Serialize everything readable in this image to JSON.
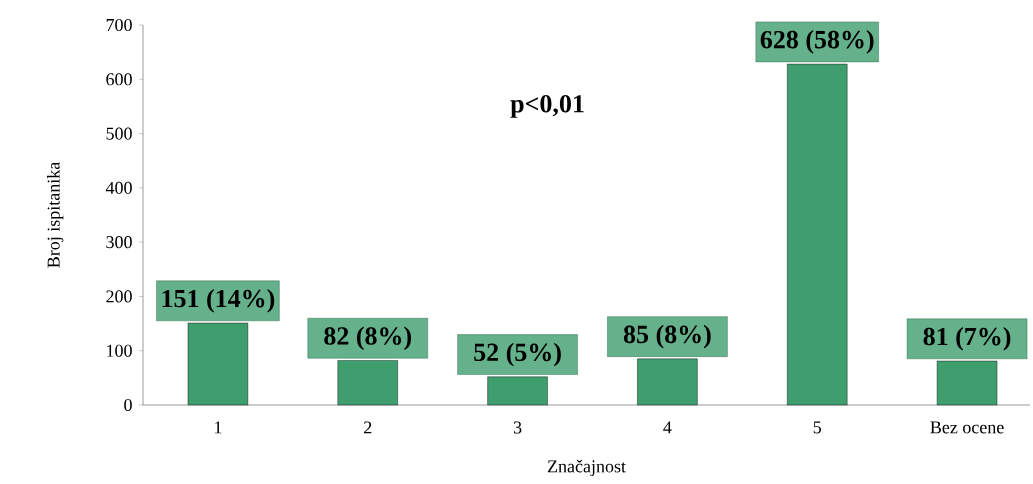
{
  "chart_data": {
    "type": "bar",
    "xlabel": "Značajnost",
    "ylabel": "Broj ispitanika",
    "categories": [
      "1",
      "2",
      "3",
      "4",
      "5",
      "Bez ocene"
    ],
    "values": [
      151,
      82,
      52,
      85,
      628,
      81
    ],
    "value_labels": [
      "151 (14%)",
      "82 (8%)",
      "52 (5%)",
      "85 (8%)",
      "628 (58%)",
      "81 (7%)"
    ],
    "color": "#3f9e6e",
    "ylim": [
      0,
      700
    ],
    "yticks": [
      0,
      100,
      200,
      300,
      400,
      500,
      600,
      700
    ],
    "annotations": [
      "p<0,01"
    ],
    "grid": false
  }
}
